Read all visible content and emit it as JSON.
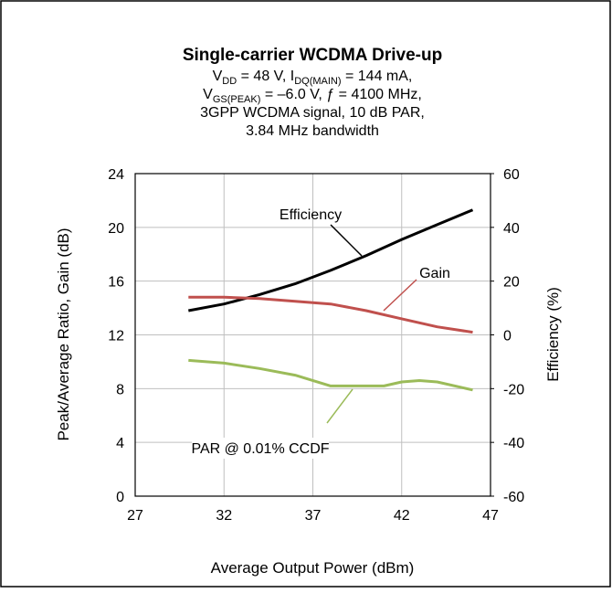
{
  "chart_data": {
    "type": "line",
    "title": "Single-carrier WCDMA Drive-up",
    "subtitle": [
      [
        {
          "t": "V"
        },
        {
          "s": "DD"
        },
        {
          "t": " = 48 V, I"
        },
        {
          "s": "DQ(MAIN)"
        },
        {
          "t": " = 144 mA,"
        }
      ],
      [
        {
          "t": "V"
        },
        {
          "s": "GS(PEAK)"
        },
        {
          "t": " = –6.0 V, ƒ = 4100 MHz,"
        }
      ],
      [
        {
          "t": "3GPP WCDMA signal, 10 dB PAR,"
        }
      ],
      [
        {
          "t": "3.84 MHz bandwidth"
        }
      ]
    ],
    "xlabel": "Average Output Power (dBm)",
    "ylabel": "Peak/Average Ratio, Gain (dB)",
    "y2label": "Efficiency (%)",
    "xlim": [
      27,
      47
    ],
    "xticks": [
      27,
      32,
      37,
      42,
      47
    ],
    "ylim": [
      0,
      24
    ],
    "yticks": [
      0,
      4,
      8,
      12,
      16,
      20,
      24
    ],
    "y2lim": [
      -60,
      60
    ],
    "y2ticks": [
      -60,
      -40,
      -20,
      0,
      20,
      40,
      60
    ],
    "grid": true,
    "series": [
      {
        "name": "Efficiency",
        "color": "#000000",
        "axis": "y2",
        "x": [
          30,
          32,
          34,
          36,
          38,
          40,
          42,
          44,
          46
        ],
        "values": [
          9,
          11.5,
          15,
          19,
          24,
          29.5,
          35.5,
          41,
          46.5
        ]
      },
      {
        "name": "Gain",
        "color": "#c0504d",
        "x": [
          30,
          32,
          34,
          36,
          38,
          40,
          42,
          44,
          46
        ],
        "values": [
          14.8,
          14.8,
          14.7,
          14.5,
          14.3,
          13.8,
          13.2,
          12.6,
          12.2
        ]
      },
      {
        "name": "PAR  @ 0.01% CCDF",
        "color": "#9bbb59",
        "x": [
          30,
          32,
          34,
          36,
          38,
          40,
          41,
          42,
          43,
          44,
          46
        ],
        "values": [
          10.1,
          9.9,
          9.5,
          9.0,
          8.2,
          8.2,
          8.2,
          8.5,
          8.6,
          8.5,
          7.9
        ]
      }
    ]
  }
}
